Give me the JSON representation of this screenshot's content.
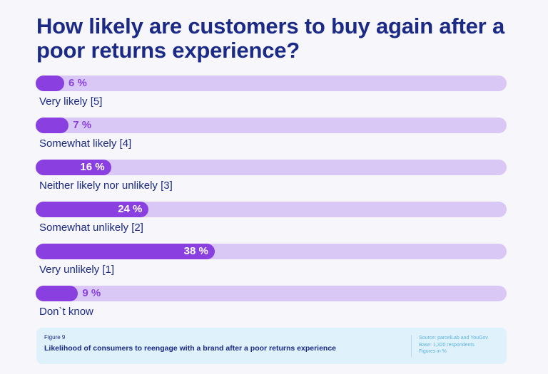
{
  "title": "How likely are customers to buy again after a poor returns experience?",
  "chart_data": {
    "type": "bar",
    "orientation": "horizontal",
    "title": "How likely are customers to buy again after a poor returns experience?",
    "categories": [
      "Very likely [5]",
      "Somewhat likely [4]",
      "Neither likely nor unlikely [3]",
      "Somewhat unlikely [2]",
      "Very unlikely [1]",
      "Don`t know"
    ],
    "values": [
      6,
      7,
      16,
      24,
      38,
      9
    ],
    "value_labels": [
      "6 %",
      "7 %",
      "16 %",
      "24 %",
      "38 %",
      "9 %"
    ],
    "unit": "%",
    "xlim": [
      0,
      100
    ],
    "xlabel": "",
    "ylabel": "",
    "grid": false,
    "legend": "none",
    "colors": {
      "fill": "#8a3fe0",
      "track": "#d9c8f6",
      "text": "#1a2a86"
    }
  },
  "footer": {
    "figure_label": "Figure 9",
    "caption": "Likelihood of consumers to reengage with a brand after a poor returns experience",
    "source": "Source: parcelLab and YouGov",
    "base": "Base: 1,320 respondents",
    "figures": "Figures in %"
  }
}
